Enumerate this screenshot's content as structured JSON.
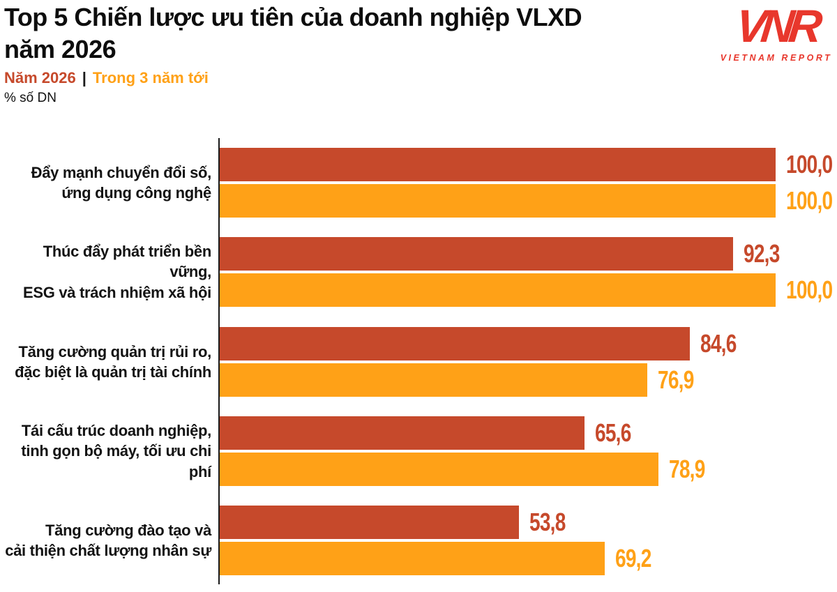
{
  "title": "Top 5 Chiến lược ưu tiên của doanh nghiệp VLXD\nnăm 2026",
  "legend": {
    "series1_label": "Năm 2026",
    "separator": "|",
    "series2_label": "Trong 3 năm tới"
  },
  "unit_label": "% số DN",
  "logo": {
    "monogram": "VNR",
    "text": "VIETNAM REPORT"
  },
  "colors": {
    "series1": "#C6492B",
    "series2": "#FFA117",
    "axis": "#1a1a1a",
    "logo_red": "#E8372C",
    "title_text": "#0d0d0d"
  },
  "chart_data": {
    "type": "bar",
    "orientation": "horizontal",
    "title": "Top 5 Chiến lược ưu tiên của doanh nghiệp VLXD năm 2026",
    "xlabel": "% số DN",
    "xlim": [
      0,
      100
    ],
    "grid": false,
    "legend_position": "top-left",
    "decimal_separator": ",",
    "categories": [
      [
        "Đẩy mạnh chuyển đổi số,",
        "ứng dụng công nghệ"
      ],
      [
        "Thúc đẩy phát triển bền vững,",
        "ESG và trách nhiệm xã hội"
      ],
      [
        "Tăng cường quản trị rủi ro,",
        "đặc biệt là quản trị tài chính"
      ],
      [
        "Tái cấu trúc doanh nghiệp,",
        "tinh gọn bộ máy, tối ưu chi phí"
      ],
      [
        "Tăng cường đào tạo và",
        "cải thiện chất lượng nhân sự"
      ]
    ],
    "series": [
      {
        "name": "Năm 2026",
        "color": "#C6492B",
        "values": [
          100.0,
          92.3,
          84.6,
          65.6,
          53.8
        ],
        "value_labels": [
          "100,0",
          "92,3",
          "84,6",
          "65,6",
          "53,8"
        ]
      },
      {
        "name": "Trong 3 năm tới",
        "color": "#FFA117",
        "values": [
          100.0,
          100.0,
          76.9,
          78.9,
          69.2
        ],
        "value_labels": [
          "100,0",
          "100,0",
          "76,9",
          "78,9",
          "69,2"
        ]
      }
    ]
  }
}
